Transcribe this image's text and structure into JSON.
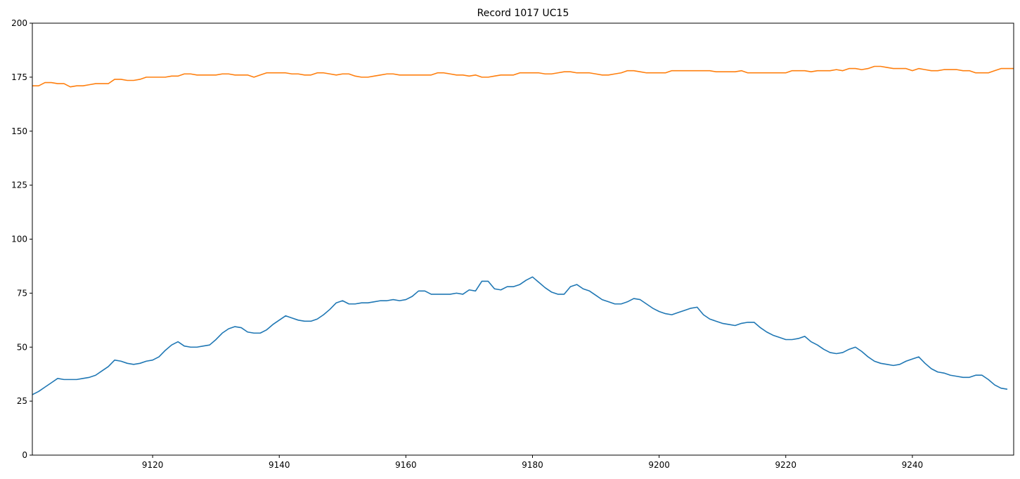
{
  "chart_data": {
    "type": "line",
    "title": "Record 1017 UC15",
    "xlabel": "",
    "ylabel": "",
    "xlim": [
      9101,
      9256
    ],
    "ylim": [
      0,
      200
    ],
    "x_ticks": [
      9120,
      9140,
      9160,
      9180,
      9200,
      9220,
      9240
    ],
    "y_ticks": [
      0,
      25,
      50,
      75,
      100,
      125,
      150,
      175,
      200
    ],
    "grid": false,
    "x_start": 9101,
    "series": [
      {
        "color": "#1f77b4",
        "values": [
          28,
          29.5,
          31.5,
          33.5,
          35.5,
          35,
          35,
          35,
          35.5,
          36,
          37,
          39,
          41,
          44,
          43.5,
          42.5,
          42,
          42.5,
          43.5,
          44,
          45.5,
          48.5,
          51,
          52.5,
          50.5,
          50,
          50,
          50.5,
          51,
          53.5,
          56.5,
          58.5,
          59.5,
          59,
          57,
          56.5,
          56.5,
          58,
          60.5,
          62.5,
          64.5,
          63.5,
          62.5,
          62,
          62,
          63,
          65,
          67.5,
          70.5,
          71.5,
          70,
          70,
          70.5,
          70.5,
          71,
          71.5,
          71.5,
          72,
          71.5,
          72,
          73.5,
          76,
          76,
          74.5,
          74.5,
          74.5,
          74.5,
          75,
          74.5,
          76.5,
          76,
          80.5,
          80.5,
          77,
          76.5,
          78,
          78,
          79,
          81,
          82.5,
          80,
          77.5,
          75.5,
          74.5,
          74.5,
          78,
          79,
          77,
          76,
          74,
          72,
          71,
          70,
          70,
          71,
          72.5,
          72,
          70,
          68,
          66.5,
          65.5,
          65,
          66,
          67,
          68,
          68.5,
          65,
          63,
          62,
          61,
          60.5,
          60,
          61,
          61.5,
          61.5,
          59,
          57,
          55.5,
          54.5,
          53.5,
          53.5,
          54,
          55,
          52.5,
          51,
          49,
          47.5,
          47,
          47.5,
          49,
          50,
          48,
          45.5,
          43.5,
          42.5,
          42,
          41.5,
          42,
          43.5,
          44.5,
          45.5,
          42.5,
          40,
          38.5,
          38,
          37,
          36.5,
          36,
          36,
          37,
          37,
          35,
          32.5,
          31,
          30.5
        ]
      },
      {
        "color": "#ff7f0e",
        "values": [
          171,
          171,
          172.5,
          172.5,
          172,
          172,
          170.5,
          171,
          171,
          171.5,
          172,
          172,
          172,
          174,
          174,
          173.5,
          173.5,
          174,
          175,
          175,
          175,
          175,
          175.5,
          175.5,
          176.5,
          176.5,
          176,
          176,
          176,
          176,
          176.5,
          176.5,
          176,
          176,
          176,
          175,
          176,
          177,
          177,
          177,
          177,
          176.5,
          176.5,
          176,
          176,
          177,
          177,
          176.5,
          176,
          176.5,
          176.5,
          175.5,
          175,
          175,
          175.5,
          176,
          176.5,
          176.5,
          176,
          176,
          176,
          176,
          176,
          176,
          177,
          177,
          176.5,
          176,
          176,
          175.5,
          176,
          175,
          175,
          175.5,
          176,
          176,
          176,
          177,
          177,
          177,
          177,
          176.5,
          176.5,
          177,
          177.5,
          177.5,
          177,
          177,
          177,
          176.5,
          176,
          176,
          176.5,
          177,
          178,
          178,
          177.5,
          177,
          177,
          177,
          177,
          178,
          178,
          178,
          178,
          178,
          178,
          178,
          177.5,
          177.5,
          177.5,
          177.5,
          178,
          177,
          177,
          177,
          177,
          177,
          177,
          177,
          178,
          178,
          178,
          177.5,
          178,
          178,
          178,
          178.5,
          178,
          179,
          179,
          178.5,
          179,
          180,
          180,
          179.5,
          179,
          179,
          179,
          178,
          179,
          178.5,
          178,
          178,
          178.5,
          178.5,
          178.5,
          178,
          178,
          177,
          177,
          177,
          178,
          179,
          179,
          179
        ]
      }
    ]
  }
}
